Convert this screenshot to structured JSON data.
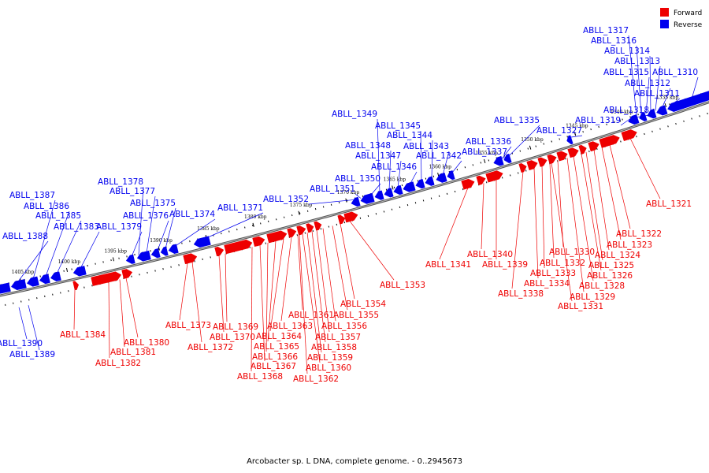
{
  "caption": "Arcobacter sp. L DNA, complete genome. - 0..2945673",
  "legend": [
    {
      "label": "Forward",
      "color": "#ee0000"
    },
    {
      "label": "Reverse",
      "color": "#0000ee"
    }
  ],
  "colors": {
    "forward": "#ee0000",
    "reverse": "#0000ee",
    "backbone": "#777777"
  },
  "ticks": [
    "1335 kbp",
    "1340 kbp",
    "1345 kbp",
    "1350 kbp",
    "1355 kbp",
    "1360 kbp",
    "1365 kbp",
    "1370 kbp",
    "1375 kbp",
    "1380 kbp",
    "1385 kbp",
    "1390 kbp",
    "1395 kbp",
    "1400 kbp",
    "1405 kbp"
  ],
  "reverse_labels": [
    "ABLL_1310",
    "ABLL_1311",
    "ABLL_1312",
    "ABLL_1313",
    "ABLL_1314",
    "ABLL_1315",
    "ABLL_1316",
    "ABLL_1317",
    "ABLL_1318",
    "ABLL_1319",
    "ABLL_1327",
    "ABLL_1335",
    "ABLL_1336",
    "ABLL_1337",
    "ABLL_1342",
    "ABLL_1343",
    "ABLL_1344",
    "ABLL_1345",
    "ABLL_1346",
    "ABLL_1347",
    "ABLL_1348",
    "ABLL_1349",
    "ABLL_1350",
    "ABLL_1351",
    "ABLL_1352",
    "ABLL_1371",
    "ABLL_1374",
    "ABLL_1375",
    "ABLL_1376",
    "ABLL_1377",
    "ABLL_1378",
    "ABLL_1379",
    "ABLL_1383",
    "ABLL_1385",
    "ABLL_1386",
    "ABLL_1387",
    "ABLL_1388",
    "ABLL_1389",
    "ABLL_1390"
  ],
  "forward_labels": [
    "ABLL_1321",
    "ABLL_1322",
    "ABLL_1323",
    "ABLL_1324",
    "ABLL_1325",
    "ABLL_1326",
    "ABLL_1328",
    "ABLL_1329",
    "ABLL_1330",
    "ABLL_1331",
    "ABLL_1332",
    "ABLL_1333",
    "ABLL_1334",
    "ABLL_1338",
    "ABLL_1339",
    "ABLL_1340",
    "ABLL_1341",
    "ABLL_1353",
    "ABLL_1354",
    "ABLL_1355",
    "ABLL_1356",
    "ABLL_1357",
    "ABLL_1358",
    "ABLL_1359",
    "ABLL_1360",
    "ABLL_1361",
    "ABLL_1362",
    "ABLL_1363",
    "ABLL_1364",
    "ABLL_1365",
    "ABLL_1366",
    "ABLL_1367",
    "ABLL_1368",
    "ABLL_1369",
    "ABLL_1370",
    "ABLL_1372",
    "ABLL_1373",
    "ABLL_1380",
    "ABLL_1381",
    "ABLL_1382",
    "ABLL_1384"
  ]
}
